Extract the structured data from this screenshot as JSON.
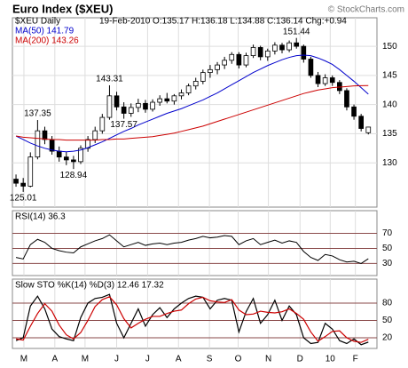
{
  "chart_data": [
    {
      "type": "candlestick",
      "title": "Euro Index ($XEU)",
      "source": "© StockCharts.com",
      "symbol_label": "$XEU Daily",
      "quote": "19-Feb-2010 O:135.17 H:136.18 L:134.88 C:136.14 Chg:+0.94",
      "up_color": "#ffffff",
      "down_color": "#000000",
      "grid": true,
      "xlim": [
        -0.5,
        50.2
      ],
      "ylim": [
        122.4,
        154.9
      ],
      "yticks": [
        130,
        135,
        140,
        145,
        150
      ],
      "ohlc": [
        [
          127.2,
          128.0,
          125.9,
          126.5
        ],
        [
          126.5,
          127.4,
          125.01,
          126.0
        ],
        [
          126.0,
          131.8,
          125.8,
          131.0
        ],
        [
          131.0,
          137.35,
          130.6,
          135.5
        ],
        [
          135.5,
          136.2,
          133.2,
          134.0
        ],
        [
          134.0,
          134.6,
          131.4,
          132.0
        ],
        [
          132.0,
          132.8,
          130.2,
          131.0
        ],
        [
          131.0,
          131.9,
          129.6,
          130.5
        ],
        [
          130.5,
          131.2,
          128.94,
          130.2
        ],
        [
          130.2,
          133.0,
          129.8,
          132.5
        ],
        [
          132.5,
          134.6,
          131.9,
          134.0
        ],
        [
          134.0,
          136.2,
          133.4,
          135.5
        ],
        [
          135.5,
          138.4,
          135.0,
          137.8
        ],
        [
          137.8,
          143.31,
          137.4,
          141.5
        ],
        [
          141.5,
          142.2,
          139.0,
          139.6
        ],
        [
          139.6,
          140.4,
          137.57,
          138.5
        ],
        [
          138.5,
          140.2,
          137.9,
          139.5
        ],
        [
          139.5,
          141.0,
          138.7,
          140.2
        ],
        [
          140.2,
          140.8,
          138.6,
          139.2
        ],
        [
          139.2,
          140.9,
          138.8,
          140.4
        ],
        [
          140.4,
          141.6,
          139.8,
          141.0
        ],
        [
          141.0,
          142.0,
          140.2,
          140.6
        ],
        [
          140.6,
          141.8,
          140.0,
          141.5
        ],
        [
          141.5,
          142.6,
          140.9,
          142.0
        ],
        [
          142.0,
          143.6,
          141.6,
          143.2
        ],
        [
          143.2,
          144.6,
          142.6,
          144.0
        ],
        [
          144.0,
          146.0,
          143.5,
          145.5
        ],
        [
          145.5,
          146.8,
          144.6,
          146.0
        ],
        [
          146.0,
          147.3,
          145.2,
          146.8
        ],
        [
          146.8,
          148.2,
          146.1,
          147.6
        ],
        [
          147.6,
          149.0,
          147.0,
          148.6
        ],
        [
          148.6,
          149.0,
          146.2,
          146.8
        ],
        [
          146.8,
          148.9,
          146.4,
          148.4
        ],
        [
          148.4,
          150.3,
          148.0,
          149.8
        ],
        [
          149.8,
          150.1,
          147.6,
          148.2
        ],
        [
          148.2,
          149.6,
          147.5,
          149.2
        ],
        [
          149.2,
          150.7,
          148.6,
          150.2
        ],
        [
          150.2,
          150.6,
          148.8,
          149.4
        ],
        [
          149.4,
          151.0,
          149.0,
          150.6
        ],
        [
          150.6,
          151.44,
          149.6,
          150.0
        ],
        [
          150.0,
          150.3,
          147.2,
          147.8
        ],
        [
          147.8,
          148.2,
          144.6,
          145.0
        ],
        [
          145.0,
          145.6,
          143.0,
          143.6
        ],
        [
          143.6,
          145.2,
          143.2,
          144.6
        ],
        [
          144.6,
          145.0,
          143.2,
          143.8
        ],
        [
          143.8,
          144.2,
          141.8,
          142.4
        ],
        [
          142.4,
          142.8,
          139.0,
          139.6
        ],
        [
          139.6,
          140.0,
          137.4,
          138.0
        ],
        [
          138.0,
          138.4,
          135.4,
          135.9
        ],
        [
          135.17,
          136.18,
          134.88,
          136.14
        ]
      ],
      "series": [
        {
          "name": "MA(50) 141.79",
          "color": "#0000cc",
          "values": [
            134.6,
            134.0,
            133.4,
            132.9,
            132.5,
            132.2,
            132.0,
            131.9,
            132.0,
            132.2,
            132.6,
            133.1,
            133.6,
            134.2,
            134.8,
            135.4,
            135.9,
            136.5,
            137.0,
            137.5,
            138.0,
            138.5,
            138.9,
            139.3,
            139.8,
            140.3,
            140.8,
            141.4,
            142.0,
            142.7,
            143.4,
            144.1,
            144.8,
            145.5,
            146.1,
            146.7,
            147.2,
            147.7,
            148.1,
            148.4,
            148.5,
            148.4,
            148.0,
            147.5,
            146.9,
            146.0,
            145.0,
            144.0,
            142.9,
            141.79
          ]
        },
        {
          "name": "MA(200) 143.26",
          "color": "#cc0000",
          "values": [
            134.6,
            134.4,
            134.3,
            134.2,
            134.1,
            134.0,
            134.0,
            133.9,
            133.9,
            133.9,
            133.9,
            133.9,
            134.0,
            134.0,
            134.1,
            134.1,
            134.2,
            134.3,
            134.4,
            134.5,
            134.7,
            134.9,
            135.1,
            135.4,
            135.7,
            136.0,
            136.3,
            136.7,
            137.1,
            137.5,
            137.9,
            138.3,
            138.7,
            139.1,
            139.5,
            139.9,
            140.3,
            140.7,
            141.1,
            141.5,
            141.9,
            142.2,
            142.5,
            142.7,
            142.9,
            143.0,
            143.1,
            143.2,
            143.25,
            143.26
          ]
        }
      ],
      "annotations": [
        {
          "x": 39,
          "y": 151.44
        },
        {
          "x": 13,
          "y": 143.31
        },
        {
          "x": 3,
          "y": 137.35
        },
        {
          "x": 15,
          "y": 137.57
        },
        {
          "x": 8,
          "y": 128.94
        },
        {
          "x": 1,
          "y": 125.01
        }
      ]
    },
    {
      "type": "line",
      "title": "RSI(14) 36.3",
      "color": "#000000",
      "grid": true,
      "xlim": [
        -0.5,
        50.2
      ],
      "ylim": [
        14,
        100
      ],
      "yticks": [
        30,
        50,
        70
      ],
      "values": [
        38,
        36,
        55,
        62,
        58,
        50,
        47,
        45,
        44,
        52,
        56,
        60,
        63,
        68,
        60,
        52,
        55,
        58,
        54,
        56,
        57,
        55,
        57,
        58,
        61,
        63,
        66,
        64,
        65,
        67,
        66,
        55,
        60,
        63,
        55,
        58,
        61,
        57,
        60,
        58,
        46,
        38,
        34,
        42,
        40,
        35,
        32,
        33,
        30,
        36.3
      ]
    },
    {
      "type": "line",
      "title": "Slow STO %K(14) %D(3) 12.46 17.32",
      "grid": true,
      "xlim": [
        -0.5,
        50.2
      ],
      "ylim": [
        1.5,
        121.5
      ],
      "yticks": [
        20,
        50,
        80
      ],
      "xticks": [
        {
          "value": 1.1,
          "label": "M"
        },
        {
          "value": 5.4,
          "label": "A"
        },
        {
          "value": 9.6,
          "label": "M"
        },
        {
          "value": 14,
          "label": "J"
        },
        {
          "value": 18.3,
          "label": "J"
        },
        {
          "value": 22.6,
          "label": "A"
        },
        {
          "value": 26.9,
          "label": "S"
        },
        {
          "value": 30.9,
          "label": "O"
        },
        {
          "value": 35.1,
          "label": "N"
        },
        {
          "value": 39.5,
          "label": "D"
        },
        {
          "value": 43.7,
          "label": "10"
        },
        {
          "value": 47.2,
          "label": "F"
        }
      ],
      "series": [
        {
          "color": "#000000",
          "values": [
            15,
            20,
            75,
            92,
            70,
            35,
            22,
            18,
            15,
            55,
            80,
            88,
            90,
            95,
            45,
            20,
            45,
            70,
            40,
            60,
            72,
            55,
            70,
            80,
            88,
            92,
            90,
            70,
            85,
            88,
            85,
            30,
            65,
            88,
            45,
            60,
            85,
            50,
            75,
            60,
            20,
            10,
            12,
            45,
            35,
            15,
            10,
            18,
            8,
            12.46
          ]
        },
        {
          "color": "#cc0000",
          "values": [
            18,
            16,
            40,
            62,
            79,
            66,
            42,
            25,
            18,
            29,
            50,
            74,
            86,
            91,
            77,
            53,
            37,
            45,
            52,
            57,
            57,
            62,
            66,
            68,
            79,
            87,
            90,
            84,
            82,
            81,
            86,
            68,
            60,
            61,
            66,
            64,
            63,
            65,
            70,
            62,
            52,
            30,
            14,
            22,
            31,
            32,
            20,
            14,
            12,
            17.32
          ]
        }
      ]
    }
  ]
}
